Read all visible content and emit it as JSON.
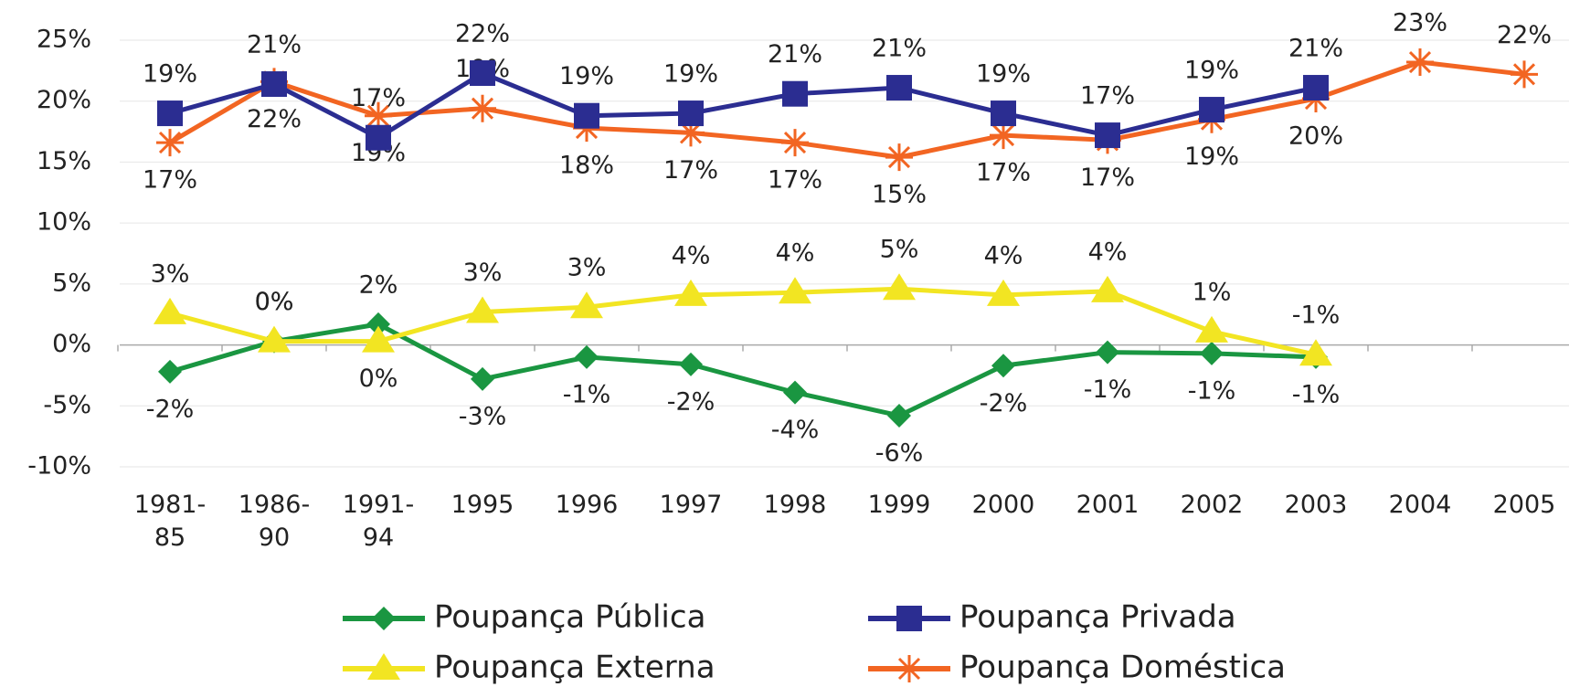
{
  "chart_data": {
    "type": "line",
    "categories": [
      "1981-85",
      "1986-90",
      "1991-94",
      "1995",
      "1996",
      "1997",
      "1998",
      "1999",
      "2000",
      "2001",
      "2002",
      "2003",
      "2004",
      "2005"
    ],
    "series": [
      {
        "name": "Poupança Pública",
        "color": "#1a9641",
        "marker": "diamond",
        "values": [
          -2.2,
          0.3,
          1.7,
          -2.8,
          -1.0,
          -1.6,
          -3.9,
          -5.8,
          -1.7,
          -0.6,
          -0.7,
          -1.0,
          null,
          null
        ],
        "value_labels": [
          "-2%",
          "0%",
          "2%",
          "-3%",
          "-1%",
          "-2%",
          "-4%",
          "-6%",
          "-2%",
          "-1%",
          "-1%",
          "-1%",
          null,
          null
        ]
      },
      {
        "name": "Poupança Privada",
        "color": "#2b2d91",
        "marker": "square",
        "values": [
          19.0,
          21.4,
          17.0,
          22.3,
          18.8,
          19.0,
          20.6,
          21.1,
          19.0,
          17.2,
          19.3,
          21.1,
          null,
          null
        ],
        "value_labels": [
          "19%",
          "21%",
          "17%",
          "22%",
          "19%",
          "19%",
          "21%",
          "21%",
          "19%",
          "17%",
          "19%",
          "21%",
          null,
          null
        ]
      },
      {
        "name": "Poupança Externa",
        "color": "#f2e522",
        "marker": "triangle",
        "values": [
          2.6,
          0.3,
          0.3,
          2.7,
          3.1,
          4.1,
          4.3,
          4.6,
          4.1,
          4.4,
          1.1,
          -0.8,
          null,
          null
        ],
        "value_labels": [
          "3%",
          "0%",
          "0%",
          "3%",
          "3%",
          "4%",
          "4%",
          "5%",
          "4%",
          "4%",
          "1%",
          "-1%",
          null,
          null
        ]
      },
      {
        "name": "Poupança Doméstica",
        "color": "#f26522",
        "marker": "asterisk",
        "values": [
          16.6,
          21.6,
          18.8,
          19.4,
          17.8,
          17.4,
          16.6,
          15.4,
          17.2,
          16.8,
          18.5,
          20.2,
          23.2,
          22.2
        ],
        "value_labels": [
          "17%",
          "22%",
          "19%",
          "19%",
          "18%",
          "17%",
          "17%",
          "15%",
          "17%",
          "17%",
          "19%",
          "20%",
          "23%",
          "22%"
        ]
      }
    ],
    "ylim": [
      -10,
      25
    ],
    "yticks": [
      {
        "value": -10,
        "label": "-10%"
      },
      {
        "value": -5,
        "label": "-5%"
      },
      {
        "value": 0,
        "label": "0%"
      },
      {
        "value": 5,
        "label": "5%"
      },
      {
        "value": 10,
        "label": "10%"
      },
      {
        "value": 15,
        "label": "15%"
      },
      {
        "value": 20,
        "label": "20%"
      },
      {
        "value": 25,
        "label": "25%"
      }
    ],
    "grid": true,
    "legend": "bottom"
  }
}
